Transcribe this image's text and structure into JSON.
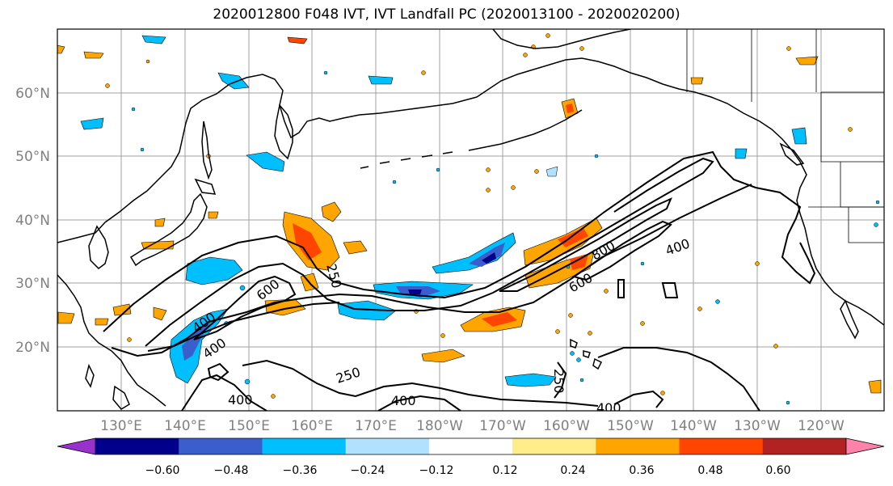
{
  "title": "2020012800 F048 IVT, IVT Landfall PC (2020013100 - 2020020200)",
  "lat_labels": [
    "60°N",
    "50°N",
    "40°N",
    "30°N",
    "20°N"
  ],
  "lon_labels": [
    "130°E",
    "140°E",
    "150°E",
    "160°E",
    "170°E",
    "180°W",
    "170°W",
    "160°W",
    "150°W",
    "140°W",
    "130°W",
    "120°W"
  ],
  "contour_labels": [
    "400",
    "400",
    "600",
    "250",
    "400",
    "250",
    "400",
    "600",
    "800",
    "400",
    "400",
    "250"
  ],
  "colorbar": {
    "ticks": [
      "−0.60",
      "−0.48",
      "−0.36",
      "−0.24",
      "−0.12",
      "0.12",
      "0.24",
      "0.36",
      "0.48",
      "0.60"
    ],
    "colors": [
      "#9932cc",
      "#00008b",
      "#3a5fcd",
      "#00bfff",
      "#b0e2ff",
      "#ffffff",
      "#ffec8b",
      "#ffa500",
      "#ff4500",
      "#b22222",
      "#ff82ab"
    ]
  },
  "colors": {
    "land": "#000000",
    "grid": "#a0a0a0",
    "contour": "#000000"
  }
}
